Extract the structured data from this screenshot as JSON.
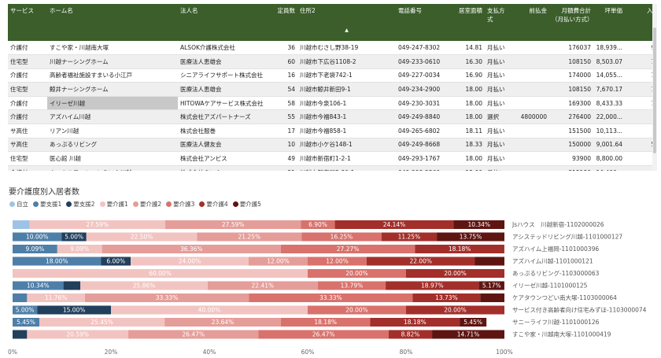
{
  "table": {
    "headers": [
      "サービス",
      "ホーム名",
      "法人名",
      "定員数",
      "住所2",
      "電話番号",
      "居室面積",
      "支払方式",
      "前払金",
      "月額費合計（月払い方式）",
      "坪単価",
      "入居"
    ],
    "rows": [
      [
        "介護付",
        "すこや家・川越南大塚",
        "ALSOK介護株式会社",
        "36",
        "川越市むさし野38-19",
        "049-247-8302",
        "14.81",
        "月払い",
        "",
        "176037",
        "18,939...",
        "94"
      ],
      [
        "住宅型",
        "川越ナーシングホーム",
        "医療法人恵雄会",
        "60",
        "川越市下広谷1108-2",
        "049-233-0610",
        "16.30",
        "月払い",
        "",
        "108150",
        "8,503.07",
        "10"
      ],
      [
        "介護付",
        "高齢者福祉施設すまいる小江戸",
        "シニアライフサポート株式会社",
        "16",
        "川越市下老袋742-1",
        "049-227-0034",
        "16.90",
        "月払い",
        "",
        "174000",
        "14,055...",
        "18"
      ],
      [
        "住宅型",
        "鯨井ナーシングホーム",
        "医療法人恵雄会",
        "54",
        "川越市鯨井新田9-1",
        "049-234-2900",
        "18.00",
        "月払い",
        "",
        "108150",
        "7,670.17",
        "10"
      ],
      [
        "介護付",
        "イリーゼ川越",
        "HITOWAケアサービス株式会社",
        "58",
        "川越市今泉106-1",
        "049-230-3031",
        "18.00",
        "月払い",
        "",
        "169300",
        "8,433.33",
        "16"
      ],
      [
        "介護付",
        "アズハイム川越",
        "株式会社アズパートナーズ",
        "55",
        "川越市今福843-1",
        "049-249-8840",
        "18.00",
        "選択",
        "4800000",
        "276400",
        "22,000...",
        ""
      ],
      [
        "サ高住",
        "リアン川越",
        "株式会社服巻",
        "17",
        "川越市今福858-1",
        "049-265-6802",
        "18.11",
        "月払い",
        "",
        "151500",
        "10,113...",
        ""
      ],
      [
        "サ高住",
        "あっぷるリビング",
        "医療法人健友会",
        "10",
        "川越市小ケ谷148-1",
        "049-249-8668",
        "18.33",
        "月払い",
        "",
        "150000",
        "9,001.64",
        "56"
      ],
      [
        "住宅型",
        "医心館 川越",
        "株式会社アンビス",
        "49",
        "川越市新宿町1-2-1",
        "049-293-1767",
        "18.00",
        "月払い",
        "",
        "93900",
        "8,800.00",
        ""
      ],
      [
        "介護付",
        "ホームステーションらいふ川越",
        "株式会社らいふ",
        "51",
        "川越市新宿町3-30-1",
        "049-293-2560",
        "15.00",
        "月払い",
        "",
        "215130",
        "16,400...",
        ""
      ]
    ]
  },
  "chart_data": {
    "type": "bar",
    "orientation": "horizontal",
    "stacked": true,
    "normalized": true,
    "title": "要介護度別入居者数",
    "legend_position": "top-left",
    "xlim": [
      0,
      100
    ],
    "x_ticks": [
      "0%",
      "20%",
      "40%",
      "60%",
      "80%",
      "100%"
    ],
    "categories": [
      "Jsハウス　川越新宿-1102000026",
      "アシステッドリビング川越-1101000127",
      "アズハイム上福岡-1101000396",
      "アズハイム川越-1101000121",
      "あっぷるリビング-1103000063",
      "イリーゼ川越-1101000125",
      "ケアタウンつどい南大塚-1103000064",
      "サービス付き高齢者向け住宅みずほ-1103000074",
      "サニーライフ川越-1101000126",
      "すこや家・川越南大塚-1101000419"
    ],
    "series": [
      {
        "name": "自立",
        "color": "#9dc3e6",
        "values": [
          3.45,
          0,
          0,
          0,
          0,
          0,
          0,
          0,
          0,
          0
        ]
      },
      {
        "name": "要支援1",
        "color": "#4e7fa8",
        "values": [
          0,
          10.0,
          9.09,
          18.0,
          0,
          10.34,
          2.94,
          5.0,
          5.45,
          0
        ]
      },
      {
        "name": "要支援2",
        "color": "#223f5c",
        "values": [
          0,
          5.0,
          0,
          6.0,
          0,
          3.45,
          0,
          15.0,
          0,
          2.94
        ]
      },
      {
        "name": "要介護1",
        "color": "#f2c4c1",
        "values": [
          27.59,
          22.5,
          9.09,
          24.0,
          60.0,
          25.86,
          11.76,
          40.0,
          25.45,
          20.59
        ]
      },
      {
        "name": "要介護2",
        "color": "#e59d99",
        "values": [
          27.59,
          21.25,
          36.36,
          12.0,
          0,
          22.41,
          33.33,
          0,
          23.64,
          26.47
        ]
      },
      {
        "name": "要介護3",
        "color": "#d9726c",
        "values": [
          6.9,
          16.25,
          27.27,
          12.0,
          20.0,
          13.79,
          33.33,
          20.0,
          18.18,
          26.47
        ]
      },
      {
        "name": "要介護4",
        "color": "#a32f2b",
        "values": [
          24.14,
          11.25,
          18.18,
          22.0,
          20.0,
          18.97,
          13.73,
          20.0,
          18.18,
          8.82
        ]
      },
      {
        "name": "要介護5",
        "color": "#5e1512",
        "values": [
          10.34,
          13.75,
          0,
          6.0,
          0,
          5.17,
          4.91,
          0,
          5.45,
          14.71
        ]
      }
    ],
    "labels": [
      [
        "",
        "",
        "",
        "27.59%",
        "27.59%",
        "6.90%",
        "24.14%",
        "10.34%"
      ],
      [
        "",
        "10.00%",
        "5.00%",
        "22.50%",
        "21.25%",
        "16.25%",
        "11.25%",
        "13.75%"
      ],
      [
        "",
        "9.09%",
        "",
        "9.09%",
        "36.36%",
        "27.27%",
        "18.18%",
        ""
      ],
      [
        "",
        "18.00%",
        "6.00%",
        "24.00%",
        "12.00%",
        "12.00%",
        "22.00%",
        ""
      ],
      [
        "",
        "",
        "",
        "60.00%",
        "",
        "20.00%",
        "20.00%",
        ""
      ],
      [
        "",
        "10.34%",
        "",
        "25.86%",
        "22.41%",
        "13.79%",
        "18.97%",
        "5.17%"
      ],
      [
        "",
        "",
        "",
        "11.76%",
        "33.33%",
        "33.33%",
        "13.73%",
        ""
      ],
      [
        "",
        "5.00%",
        "15.00%",
        "40.00%",
        "",
        "20.00%",
        "20.00%",
        ""
      ],
      [
        "",
        "5.45%",
        "",
        "25.45%",
        "23.64%",
        "18.18%",
        "18.18%",
        "5.45%"
      ],
      [
        "",
        "",
        "",
        "20.59%",
        "26.47%",
        "26.47%",
        "8.82%",
        "14.71%"
      ]
    ]
  }
}
